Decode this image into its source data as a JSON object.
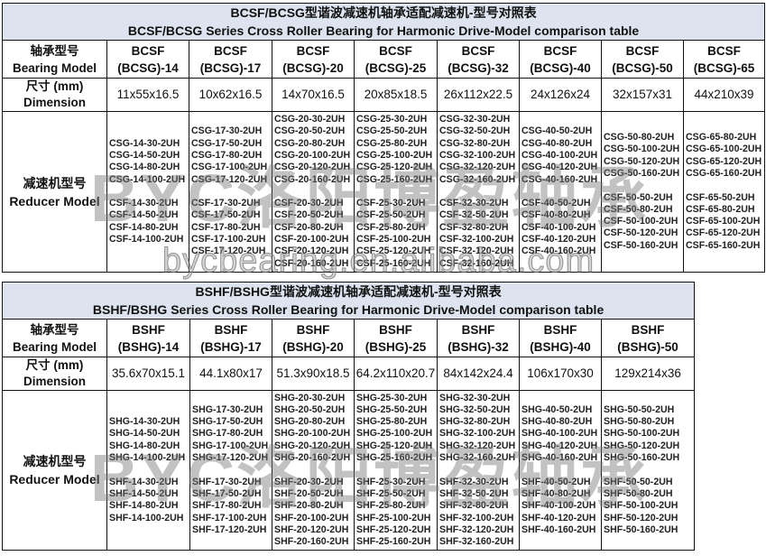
{
  "table1": {
    "title_cn": "BCSF/BCSG型谐波减速机轴承适配减速机-型号对照表",
    "title_en": "BCSF/BCSG Series Cross Roller Bearing for Harmonic Drive-Model comparison table",
    "row_label_model_cn": "轴承型号",
    "row_label_model_en": "Bearing Model",
    "row_label_dim_cn": "尺寸 (mm)",
    "row_label_dim_en": "Dimension",
    "row_label_reducer_cn": "减速机型号",
    "row_label_reducer_en": "Reducer Model",
    "columns": [
      {
        "model_a": "BCSF",
        "model_b": "(BCSG)-14",
        "dimension": "11x55x16.5",
        "g": [
          "CSG-14-30-2UH",
          "CSG-14-50-2UH",
          "CSG-14-80-2UH",
          "CSG-14-100-2UH"
        ],
        "f": [
          "CSF-14-30-2UH",
          "CSF-14-50-2UH",
          "CSF-14-80-2UH",
          "CSF-14-100-2UH"
        ]
      },
      {
        "model_a": "BCSF",
        "model_b": "(BCSG)-17",
        "dimension": "10x62x16.5",
        "g": [
          "CSG-17-30-2UH",
          "CSG-17-50-2UH",
          "CSG-17-80-2UH",
          "CSG-17-100-2UH",
          "CSG-17-120-2UH"
        ],
        "f": [
          "CSF-17-30-2UH",
          "CSF-17-50-2UH",
          "CSF-17-80-2UH",
          "CSF-17-100-2UH",
          "CSF-17-120-2UH"
        ]
      },
      {
        "model_a": "BCSF",
        "model_b": "(BCSG)-20",
        "dimension": "14x70x16.5",
        "g": [
          "CSG-20-30-2UH",
          "CSG-20-50-2UH",
          "CSG-20-80-2UH",
          "CSG-20-100-2UH",
          "CSG-20-120-2UH",
          "CSG-20-160-2UH"
        ],
        "f": [
          "CSF-20-30-2UH",
          "CSF-20-50-2UH",
          "CSF-20-80-2UH",
          "CSF-20-100-2UH",
          "CSF-20-120-2UH",
          "CSF-20-160-2UH"
        ]
      },
      {
        "model_a": "BCSF",
        "model_b": "(BCSG)-25",
        "dimension": "20x85x18.5",
        "g": [
          "CSG-25-30-2UH",
          "CSG-25-50-2UH",
          "CSG-25-80-2UH",
          "CSG-25-100-2UH",
          "CSG-25-120-2UH",
          "CSG-25-160-2UH"
        ],
        "f": [
          "CSF-25-30-2UH",
          "CSF-25-50-2UH",
          "CSF-25-80-2UH",
          "CSF-25-100-2UH",
          "CSF-25-120-2UH",
          "CSF-25-160-2UH"
        ]
      },
      {
        "model_a": "BCSF",
        "model_b": "(BCSG)-32",
        "dimension": "26x112x22.5",
        "g": [
          "CSG-32-30-2UH",
          "CSG-32-50-2UH",
          "CSG-32-80-2UH",
          "CSG-32-100-2UH",
          "CSG-32-120-2UH",
          "CSG-32-160-2UH"
        ],
        "f": [
          "CSF-32-30-2UH",
          "CSF-32-50-2UH",
          "CSF-32-80-2UH",
          "CSF-32-100-2UH",
          "CSF-32-120-2UH",
          "CSF-32-160-2UH"
        ]
      },
      {
        "model_a": "BCSF",
        "model_b": "(BCSG)-40",
        "dimension": "24x126x24",
        "g": [
          "CSG-40-50-2UH",
          "CSG-40-80-2UH",
          "CSG-40-100-2UH",
          "CSG-40-120-2UH",
          "CSG-40-160-2UH"
        ],
        "f": [
          "CSF-40-50-2UH",
          "CSF-40-80-2UH",
          "CSF-40-100-2UH",
          "CSF-40-120-2UH",
          "CSF-40-160-2UH"
        ]
      },
      {
        "model_a": "BCSF",
        "model_b": "(BCSG)-50",
        "dimension": "32x157x31",
        "g": [
          "CSG-50-80-2UH",
          "CSG-50-100-2UH",
          "CSG-50-120-2UH",
          "CSG-50-160-2UH"
        ],
        "f": [
          "CSF-50-50-2UH",
          "CSF-50-80-2UH",
          "CSF-50-100-2UH",
          "CSF-50-120-2UH",
          "CSF-50-160-2UH"
        ]
      },
      {
        "model_a": "BCSF",
        "model_b": "(BCSG)-65",
        "dimension": "44x210x39",
        "g": [
          "CSG-65-80-2UH",
          "CSG-65-100-2UH",
          "CSG-65-120-2UH",
          "CSG-65-160-2UH"
        ],
        "f": [
          "CSF-65-50-2UH",
          "CSF-65-80-2UH",
          "CSF-65-100-2UH",
          "CSF-65-120-2UH",
          "CSF-65-160-2UH"
        ]
      }
    ]
  },
  "table2": {
    "title_cn": "BSHF/BSHG型谐波减速机轴承适配减速机-型号对照表",
    "title_en": "BSHF/BSHG Series Cross Roller Bearing for Harmonic Drive-Model comparison table",
    "row_label_model_cn": "轴承型号",
    "row_label_model_en": "Bearing Model",
    "row_label_dim_cn": "尺寸 (mm)",
    "row_label_dim_en": "Dimension",
    "row_label_reducer_cn": "减速机型号",
    "row_label_reducer_en": "Reducer Model",
    "columns": [
      {
        "model_a": "BSHF",
        "model_b": "(BSHG)-14",
        "dimension": "35.6x70x15.1",
        "g": [
          "SHG-14-30-2UH",
          "SHG-14-50-2UH",
          "SHG-14-80-2UH",
          "SHG-14-100-2UH"
        ],
        "f": [
          "SHF-14-30-2UH",
          "SHF-14-50-2UH",
          "SHF-14-80-2UH",
          "SHF-14-100-2UH"
        ]
      },
      {
        "model_a": "BSHF",
        "model_b": "(BSHG)-17",
        "dimension": "44.1x80x17",
        "g": [
          "SHG-17-30-2UH",
          "SHG-17-50-2UH",
          "SHG-17-80-2UH",
          "SHG-17-100-2UH",
          "SHG-17-120-2UH"
        ],
        "f": [
          "SHF-17-30-2UH",
          "SHF-17-50-2UH",
          "SHF-17-80-2UH",
          "SHF-17-100-2UH",
          "SHF-17-120-2UH"
        ]
      },
      {
        "model_a": "BSHF",
        "model_b": "(BSHG)-20",
        "dimension": "51.3x90x18.5",
        "g": [
          "SHG-20-30-2UH",
          "SHG-20-50-2UH",
          "SHG-20-80-2UH",
          "SHG-20-100-2UH",
          "SHG-20-120-2UH",
          "SHG-20-160-2UH"
        ],
        "f": [
          "SHF-20-30-2UH",
          "SHF-20-50-2UH",
          "SHF-20-80-2UH",
          "SHF-20-100-2UH",
          "SHF-20-120-2UH",
          "SHF-20-160-2UH"
        ]
      },
      {
        "model_a": "BSHF",
        "model_b": "(BSHG)-25",
        "dimension": "64.2x110x20.7",
        "g": [
          "SHG-25-30-2UH",
          "SHG-25-50-2UH",
          "SHG-25-80-2UH",
          "SHG-25-100-2UH",
          "SHG-25-120-2UH",
          "SHG-25-160-2UH"
        ],
        "f": [
          "SHF-25-30-2UH",
          "SHF-25-50-2UH",
          "SHF-25-80-2UH",
          "SHF-25-100-2UH",
          "SHF-25-120-2UH",
          "SHF-25-160-2UH"
        ]
      },
      {
        "model_a": "BSHF",
        "model_b": "(BSHG)-32",
        "dimension": "84x142x24.4",
        "g": [
          "SHG-32-30-2UH",
          "SHG-32-50-2UH",
          "SHG-32-80-2UH",
          "SHG-32-100-2UH",
          "SHG-32-120-2UH",
          "SHG-32-160-2UH"
        ],
        "f": [
          "SHF-32-30-2UH",
          "SHF-32-50-2UH",
          "SHF-32-80-2UH",
          "SHF-32-100-2UH",
          "SHF-32-120-2UH",
          "SHF-32-160-2UH"
        ]
      },
      {
        "model_a": "BSHF",
        "model_b": "(BSHG)-40",
        "dimension": "106x170x30",
        "g": [
          "SHG-40-50-2UH",
          "SHG-40-80-2UH",
          "SHG-40-100-2UH",
          "SHG-40-120-2UH",
          "SHG-40-160-2UH"
        ],
        "f": [
          "SHF-40-50-2UH",
          "SHF-40-80-2UH",
          "SHF-40-100-2UH",
          "SHF-40-120-2UH",
          "SHF-40-160-2UH"
        ]
      },
      {
        "model_a": "BSHF",
        "model_b": "(BSHG)-50",
        "dimension": "129x214x36",
        "g": [
          "SHG-50-50-2UH",
          "SHG-50-80-2UH",
          "SHG-50-100-2UH",
          "SHG-50-120-2UH",
          "SHG-50-160-2UH"
        ],
        "f": [
          "SHF-50-50-2UH",
          "SHF-50-80-2UH",
          "SHF-50-100-2UH",
          "SHF-50-120-2UH",
          "SHF-50-160-2UH"
        ]
      }
    ]
  },
  "watermark": {
    "logo": "BYC洛阳博盈轴承",
    "url": "bycbearing.en.alibaba.com"
  },
  "colors": {
    "title_bg": "#dde4ef",
    "border": "#111111"
  }
}
